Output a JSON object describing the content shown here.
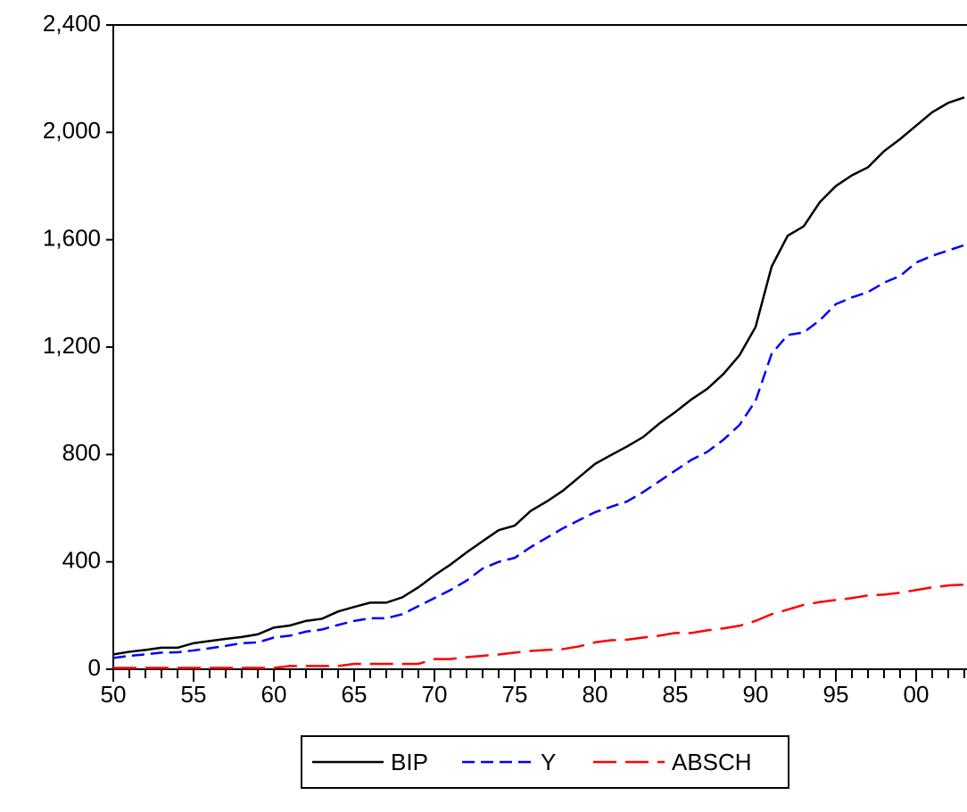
{
  "chart_data": {
    "type": "line",
    "categories": [
      "50",
      null,
      null,
      null,
      null,
      "55",
      null,
      null,
      null,
      null,
      "60",
      null,
      null,
      null,
      null,
      "65",
      null,
      null,
      null,
      null,
      "70",
      null,
      null,
      null,
      null,
      "75",
      null,
      null,
      null,
      null,
      "80",
      null,
      null,
      null,
      null,
      "85",
      null,
      null,
      null,
      null,
      "90",
      null,
      null,
      null,
      null,
      "95",
      null,
      null,
      null,
      null,
      "00",
      null,
      null,
      null
    ],
    "series": [
      {
        "name": "BIP",
        "color": "#000000",
        "dash": "solid",
        "values": [
          55,
          65,
          72,
          80,
          80,
          97,
          105,
          113,
          120,
          130,
          155,
          163,
          180,
          188,
          215,
          232,
          248,
          248,
          268,
          305,
          350,
          390,
          435,
          477,
          518,
          535,
          590,
          625,
          665,
          715,
          765,
          798,
          830,
          865,
          915,
          958,
          1005,
          1045,
          1100,
          1170,
          1275,
          1500,
          1615,
          1650,
          1740,
          1800,
          1840,
          1870,
          1930,
          1975,
          2025,
          2075,
          2110,
          2130
        ]
      },
      {
        "name": "Y",
        "color": "#0000ff",
        "dash": "short",
        "values": [
          42,
          50,
          55,
          62,
          63,
          70,
          78,
          87,
          97,
          100,
          118,
          125,
          140,
          148,
          165,
          180,
          190,
          190,
          205,
          235,
          265,
          295,
          330,
          375,
          400,
          415,
          455,
          490,
          525,
          555,
          585,
          605,
          625,
          660,
          700,
          740,
          780,
          810,
          855,
          910,
          1000,
          1175,
          1245,
          1255,
          1300,
          1360,
          1385,
          1405,
          1440,
          1465,
          1515,
          1540,
          1560,
          1580
        ]
      },
      {
        "name": "ABSCH",
        "color": "#ff0000",
        "dash": "long",
        "values": [
          5,
          5,
          5,
          5,
          5,
          5,
          5,
          5,
          5,
          5,
          5,
          12,
          12,
          12,
          12,
          20,
          20,
          20,
          20,
          20,
          38,
          38,
          45,
          50,
          55,
          62,
          68,
          72,
          75,
          85,
          100,
          108,
          110,
          118,
          125,
          135,
          135,
          145,
          152,
          162,
          180,
          205,
          222,
          240,
          250,
          258,
          265,
          275,
          278,
          285,
          295,
          305,
          312,
          315
        ]
      }
    ],
    "ylim": [
      0,
      2400
    ],
    "yticks": [
      0,
      400,
      800,
      {
        "value": 1200,
        "label": "1,200"
      },
      {
        "value": 1600,
        "label": "1,600"
      },
      {
        "value": 2000,
        "label": "2,000"
      },
      {
        "value": 2400,
        "label": "2,400"
      }
    ],
    "legend": "bottom"
  }
}
